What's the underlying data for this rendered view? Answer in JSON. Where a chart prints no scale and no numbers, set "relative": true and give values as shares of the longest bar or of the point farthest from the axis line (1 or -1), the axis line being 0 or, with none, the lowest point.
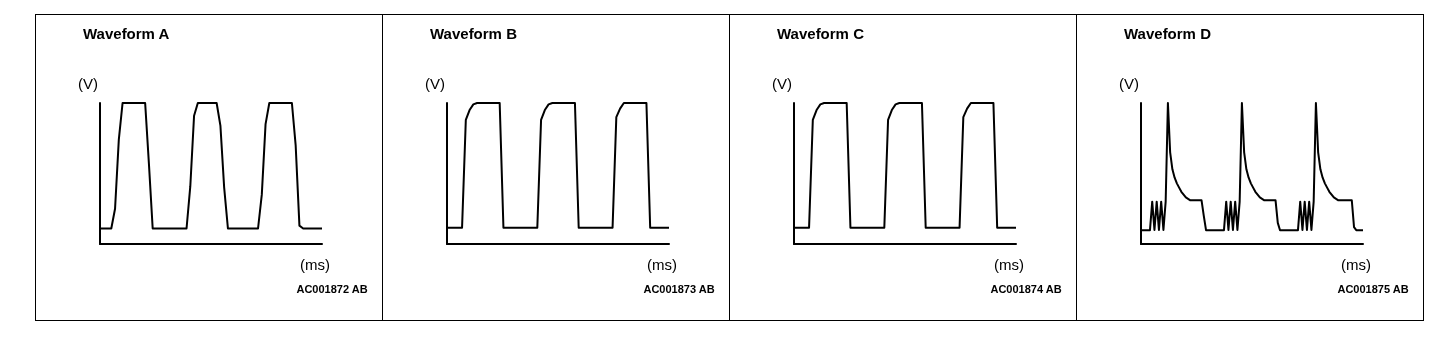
{
  "chart_data": [
    {
      "type": "line",
      "title": "Waveform A",
      "ylabel": "(V)",
      "xlabel": "(ms)",
      "annotations": [
        "AC001872 AB"
      ],
      "relative": true,
      "color": "#000000",
      "categories": [
        null,
        null,
        null,
        null,
        null,
        null,
        null,
        null,
        null,
        null,
        null,
        null,
        null,
        null,
        null,
        null,
        null,
        null,
        null,
        null,
        null,
        null,
        null,
        null,
        null,
        null,
        null,
        null,
        null,
        null,
        null,
        null,
        null,
        null,
        null,
        null,
        null,
        null,
        null,
        null,
        null,
        null,
        null,
        null,
        null,
        null,
        null,
        null,
        null,
        null,
        null,
        null,
        null,
        null,
        null,
        null,
        null,
        null,
        null,
        null
      ],
      "values": [
        0.11,
        0.11,
        0.11,
        0.11,
        0.25,
        0.74,
        1,
        1,
        1,
        1,
        1,
        1,
        1,
        0.57,
        0.11,
        0.11,
        0.11,
        0.11,
        0.11,
        0.11,
        0.11,
        0.11,
        0.11,
        0.11,
        0.41,
        0.91,
        1,
        1,
        1,
        1,
        1,
        1,
        0.84,
        0.4,
        0.11,
        0.11,
        0.11,
        0.11,
        0.11,
        0.11,
        0.11,
        0.11,
        0.11,
        0.35,
        0.85,
        1,
        1,
        1,
        1,
        1,
        1,
        1,
        0.7,
        0.13,
        0.11,
        0.11,
        0.11,
        0.11,
        0.11,
        0.11
      ]
    },
    {
      "type": "line",
      "title": "Waveform B",
      "ylabel": "(V)",
      "xlabel": "(ms)",
      "annotations": [
        "AC001873 AB"
      ],
      "relative": true,
      "color": "#000000",
      "categories": [
        null,
        null,
        null,
        null,
        null,
        null,
        null,
        null,
        null,
        null,
        null,
        null,
        null,
        null,
        null,
        null,
        null,
        null,
        null,
        null,
        null,
        null,
        null,
        null,
        null,
        null,
        null,
        null,
        null,
        null,
        null,
        null,
        null,
        null,
        null,
        null,
        null,
        null,
        null,
        null,
        null,
        null,
        null,
        null,
        null,
        null,
        null,
        null,
        null,
        null,
        null,
        null,
        null,
        null,
        null,
        null,
        null,
        null,
        null,
        null
      ],
      "values": [
        0.115,
        0.115,
        0.115,
        0.115,
        0.115,
        0.88,
        0.95,
        0.99,
        1,
        1,
        1,
        1,
        1,
        1,
        1,
        0.115,
        0.115,
        0.115,
        0.115,
        0.115,
        0.115,
        0.115,
        0.115,
        0.115,
        0.115,
        0.88,
        0.95,
        0.99,
        1,
        1,
        1,
        1,
        1,
        1,
        1,
        0.115,
        0.115,
        0.115,
        0.115,
        0.115,
        0.115,
        0.115,
        0.115,
        0.115,
        0.115,
        0.9,
        0.96,
        1,
        1,
        1,
        1,
        1,
        1,
        1,
        0.115,
        0.115,
        0.115,
        0.115,
        0.115,
        0.115
      ]
    },
    {
      "type": "line",
      "title": "Waveform C",
      "ylabel": "(V)",
      "xlabel": "(ms)",
      "annotations": [
        "AC001874 AB"
      ],
      "relative": true,
      "color": "#000000",
      "categories": [
        null,
        null,
        null,
        null,
        null,
        null,
        null,
        null,
        null,
        null,
        null,
        null,
        null,
        null,
        null,
        null,
        null,
        null,
        null,
        null,
        null,
        null,
        null,
        null,
        null,
        null,
        null,
        null,
        null,
        null,
        null,
        null,
        null,
        null,
        null,
        null,
        null,
        null,
        null,
        null,
        null,
        null,
        null,
        null,
        null,
        null,
        null,
        null,
        null,
        null,
        null,
        null,
        null,
        null,
        null,
        null,
        null,
        null,
        null,
        null
      ],
      "values": [
        0.115,
        0.115,
        0.115,
        0.115,
        0.115,
        0.88,
        0.95,
        0.99,
        1,
        1,
        1,
        1,
        1,
        1,
        1,
        0.115,
        0.115,
        0.115,
        0.115,
        0.115,
        0.115,
        0.115,
        0.115,
        0.115,
        0.115,
        0.88,
        0.95,
        0.99,
        1,
        1,
        1,
        1,
        1,
        1,
        1,
        0.115,
        0.115,
        0.115,
        0.115,
        0.115,
        0.115,
        0.115,
        0.115,
        0.115,
        0.115,
        0.9,
        0.96,
        1,
        1,
        1,
        1,
        1,
        1,
        1,
        0.115,
        0.115,
        0.115,
        0.115,
        0.115,
        0.115
      ]
    },
    {
      "type": "line",
      "title": "Waveform D",
      "ylabel": "(V)",
      "xlabel": "(ms)",
      "annotations": [
        "AC001875 AB"
      ],
      "relative": true,
      "color": "#000000",
      "categories": [
        null,
        null,
        null,
        null,
        null,
        null,
        null,
        null,
        null,
        null,
        null,
        null,
        null,
        null,
        null,
        null,
        null,
        null,
        null,
        null,
        null,
        null,
        null,
        null,
        null,
        null,
        null,
        null,
        null,
        null,
        null,
        null,
        null,
        null,
        null,
        null,
        null,
        null,
        null,
        null,
        null,
        null,
        null,
        null,
        null,
        null,
        null,
        null,
        null,
        null,
        null,
        null,
        null,
        null,
        null,
        null,
        null,
        null,
        null,
        null,
        null,
        null,
        null,
        null,
        null,
        null,
        null,
        null,
        null,
        null,
        null,
        null,
        null,
        null,
        null,
        null,
        null,
        null,
        null,
        null,
        null,
        null,
        null,
        null,
        null,
        null,
        null,
        null,
        null,
        null,
        null,
        null,
        null,
        null,
        null,
        null,
        null,
        null,
        null,
        null
      ],
      "values": [
        0.098,
        0.098,
        0.098,
        0.098,
        0.098,
        0.3,
        0.1,
        0.3,
        0.1,
        0.3,
        0.1,
        0.3,
        1,
        0.65,
        0.53,
        0.47,
        0.43,
        0.4,
        0.37,
        0.35,
        0.33,
        0.32,
        0.31,
        0.31,
        0.31,
        0.31,
        0.31,
        0.31,
        0.2,
        0.098,
        0.098,
        0.098,
        0.098,
        0.098,
        0.098,
        0.098,
        0.098,
        0.098,
        0.3,
        0.1,
        0.3,
        0.1,
        0.3,
        0.1,
        0.3,
        1,
        0.65,
        0.53,
        0.47,
        0.43,
        0.4,
        0.37,
        0.35,
        0.33,
        0.32,
        0.31,
        0.31,
        0.31,
        0.31,
        0.31,
        0.31,
        0.15,
        0.098,
        0.098,
        0.098,
        0.098,
        0.098,
        0.098,
        0.098,
        0.098,
        0.098,
        0.3,
        0.1,
        0.3,
        0.1,
        0.3,
        0.1,
        0.3,
        1,
        0.65,
        0.53,
        0.47,
        0.43,
        0.4,
        0.37,
        0.35,
        0.33,
        0.32,
        0.31,
        0.31,
        0.31,
        0.31,
        0.31,
        0.31,
        0.31,
        0.12,
        0.098,
        0.098,
        0.098,
        0.098
      ]
    }
  ]
}
